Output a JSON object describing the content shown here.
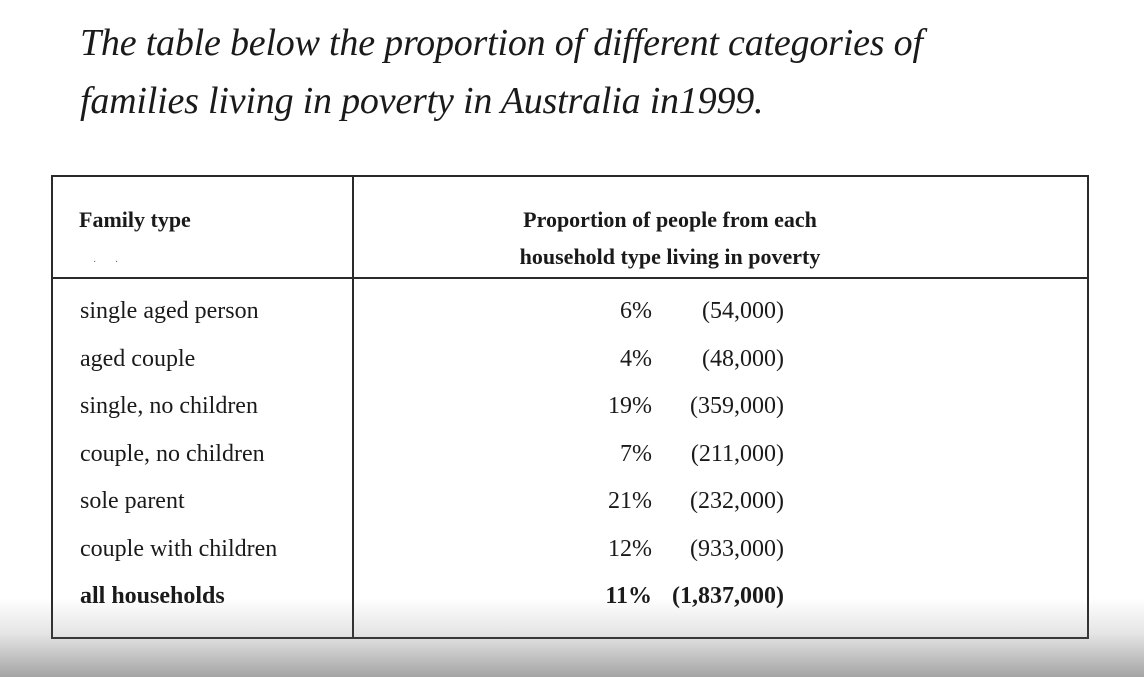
{
  "caption": {
    "line1": "The table below the proportion of different categories of",
    "line2": "families living in poverty in Australia in1999."
  },
  "table": {
    "headers": {
      "family_type": "Family type",
      "proportion_line1": "Proportion of people from each",
      "proportion_line2": "household type living in poverty"
    },
    "rows": [
      {
        "family": "single aged person",
        "percent": "6%",
        "count": "(54,000)"
      },
      {
        "family": "aged couple",
        "percent": "4%",
        "count": "(48,000)"
      },
      {
        "family": "single, no children",
        "percent": "19%",
        "count": "(359,000)"
      },
      {
        "family": "couple, no children",
        "percent": "7%",
        "count": "(211,000)"
      },
      {
        "family": "sole parent",
        "percent": "21%",
        "count": "(232,000)"
      },
      {
        "family": "couple with children",
        "percent": "12%",
        "count": "(933,000)"
      }
    ],
    "total": {
      "family": "all households",
      "percent": "11%",
      "count": "(1,837,000)"
    }
  }
}
